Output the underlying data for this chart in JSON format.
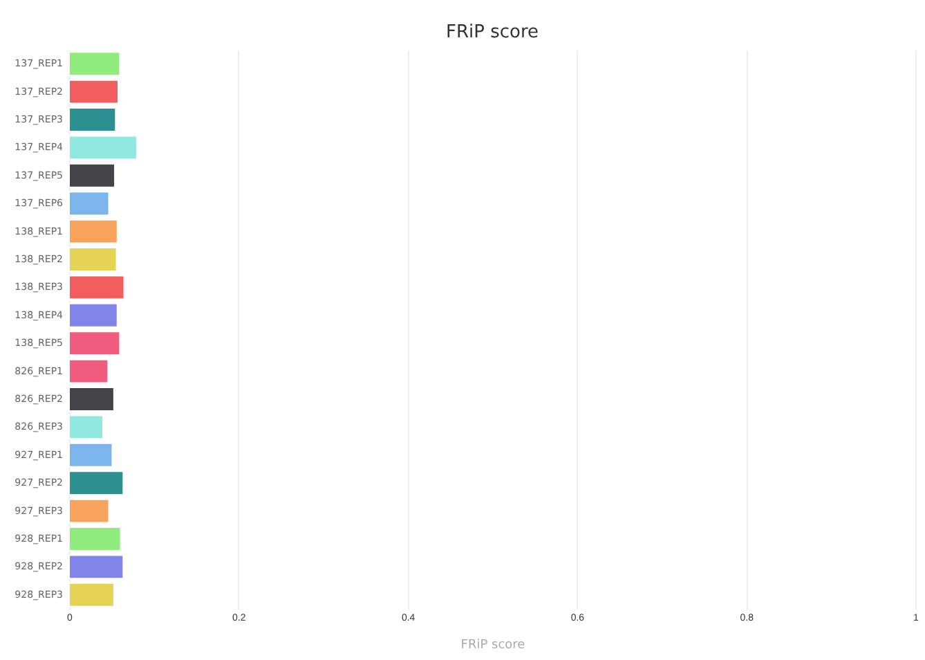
{
  "chart_data": {
    "type": "bar",
    "orientation": "horizontal",
    "title": "FRiP score",
    "xlabel": "FRiP score",
    "categories": [
      "137_REP1",
      "137_REP2",
      "137_REP3",
      "137_REP4",
      "137_REP5",
      "137_REP6",
      "138_REP1",
      "138_REP2",
      "138_REP3",
      "138_REP4",
      "138_REP5",
      "826_REP1",
      "826_REP2",
      "826_REP3",
      "927_REP1",
      "927_REP2",
      "927_REP3",
      "928_REP1",
      "928_REP2",
      "928_REP3"
    ],
    "values": [
      0.06,
      0.058,
      0.055,
      0.08,
      0.054,
      0.047,
      0.057,
      0.056,
      0.065,
      0.057,
      0.06,
      0.046,
      0.053,
      0.04,
      0.051,
      0.064,
      0.047,
      0.061,
      0.064,
      0.053
    ],
    "colors": [
      "#90ed7d",
      "#f15c5c",
      "#2b908f",
      "#91e8e1",
      "#434348",
      "#7cb5ec",
      "#f7a35c",
      "#e4d354",
      "#f15c5c",
      "#8085e9",
      "#f15c80",
      "#f15c80",
      "#434348",
      "#91e8e1",
      "#7cb5ec",
      "#2b908f",
      "#f7a35c",
      "#90ed7d",
      "#8085e9",
      "#e4d354"
    ],
    "xlim": [
      0,
      1
    ],
    "xticks": [
      0,
      0.2,
      0.4,
      0.6,
      0.8,
      1
    ],
    "grid": "x"
  }
}
